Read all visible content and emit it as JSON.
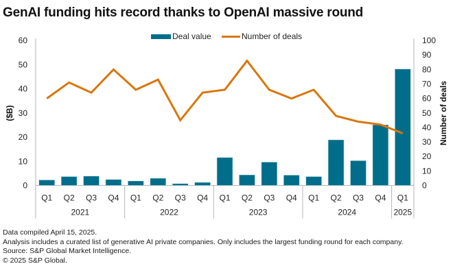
{
  "chart_data": {
    "type": "bar",
    "title": "GenAI funding hits record thanks to OpenAI massive round",
    "categories": [
      "Q1",
      "Q2",
      "Q3",
      "Q4",
      "Q1",
      "Q2",
      "Q3",
      "Q4",
      "Q1",
      "Q2",
      "Q3",
      "Q4",
      "Q1",
      "Q2",
      "Q3",
      "Q4",
      "Q1"
    ],
    "groups": [
      {
        "label": "2021",
        "count": 4
      },
      {
        "label": "2022",
        "count": 4
      },
      {
        "label": "2023",
        "count": 4
      },
      {
        "label": "2024",
        "count": 4
      },
      {
        "label": "2025",
        "count": 1
      }
    ],
    "series": [
      {
        "name": "Deal value",
        "type": "bar",
        "axis": "left",
        "color": "#006e8a",
        "values": [
          2.3,
          3.7,
          3.9,
          2.5,
          1.9,
          3.0,
          0.8,
          1.3,
          11.6,
          4.4,
          9.7,
          4.3,
          3.7,
          18.9,
          10.3,
          25.1,
          48.2
        ]
      },
      {
        "name": "Number of deals",
        "type": "line",
        "axis": "right",
        "color": "#d9760b",
        "values": [
          60,
          71,
          64,
          80,
          66,
          73,
          45,
          64,
          66,
          86,
          66,
          60,
          66,
          48,
          44,
          42,
          36
        ]
      }
    ],
    "ylabel": "($B)",
    "y2label": "Number of deals",
    "ylim": [
      0,
      60
    ],
    "y2lim": [
      0,
      100
    ],
    "yticks": [
      0,
      10,
      20,
      30,
      40,
      50,
      60
    ],
    "y2ticks": [
      0,
      10,
      20,
      30,
      40,
      50,
      60,
      70,
      80,
      90,
      100
    ],
    "grid": false,
    "legend": "top-center"
  },
  "footer": {
    "lines": [
      "Data compiled April 15, 2025.",
      "Analysis includes a curated list of generative AI private companies. Only includes the largest funding round for each company.",
      "Source: S&P Global Market Intelligence.",
      "© 2025 S&P Global."
    ]
  }
}
